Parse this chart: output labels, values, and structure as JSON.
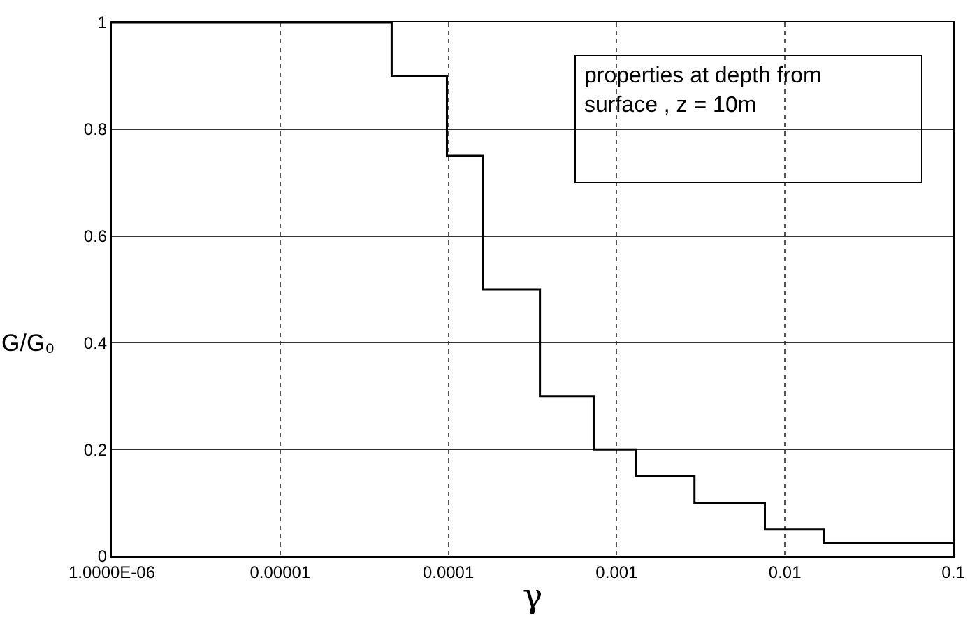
{
  "chart_data": {
    "type": "step",
    "xlabel": "γ",
    "ylabel": "G/G₀",
    "log": "x",
    "x": [
      1e-06,
      4.6e-05,
      9.8e-05,
      0.00016,
      0.00035,
      0.00073,
      0.0013,
      0.0029,
      0.0076,
      0.017,
      0.1
    ],
    "values": [
      1,
      0.9,
      0.75,
      0.5,
      0.3,
      0.2,
      0.15,
      0.1,
      0.05,
      0.025,
      0.025
    ],
    "color": "#000000",
    "xlim": [
      1e-06,
      0.1
    ],
    "xticks": [
      {
        "value": 1e-06,
        "label": "1.0000E-06"
      },
      {
        "value": 1e-05,
        "label": "0.00001"
      },
      0.0001,
      0.001,
      0.01,
      0.1
    ],
    "ylim": [
      0,
      1
    ],
    "yticks": [
      0,
      0.2,
      0.4,
      0.6,
      0.8,
      1
    ],
    "grid": true,
    "marker": "none",
    "line_style": "solid",
    "annotations": [
      "properties at depth from\nsurface , z = 10m"
    ]
  }
}
